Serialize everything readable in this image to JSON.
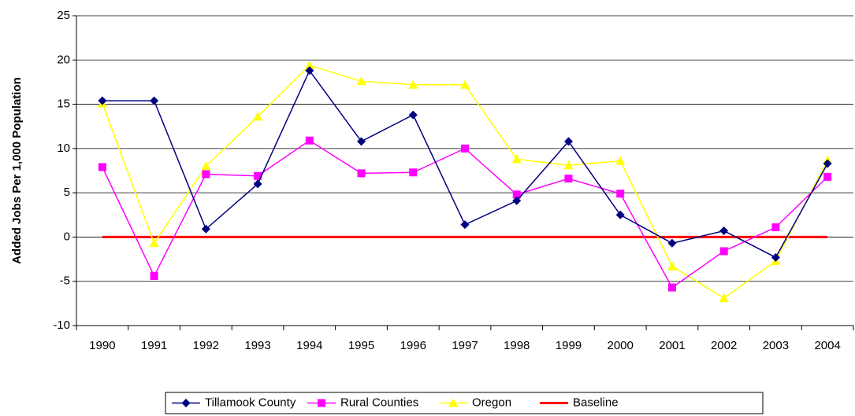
{
  "chart_data": {
    "type": "line",
    "y_label": "Added Jobs Per 1,000 Population",
    "categories": [
      "1990",
      "1991",
      "1992",
      "1993",
      "1994",
      "1995",
      "1996",
      "1997",
      "1998",
      "1999",
      "2000",
      "2001",
      "2002",
      "2003",
      "2004"
    ],
    "series": [
      {
        "name": "Tillamook County",
        "color": "#000080",
        "marker": "diamond",
        "values": [
          15.4,
          15.4,
          0.9,
          6.0,
          18.8,
          10.8,
          13.8,
          1.4,
          4.1,
          10.8,
          2.5,
          -0.7,
          0.7,
          -2.3,
          8.3
        ]
      },
      {
        "name": "Rural Counties",
        "color": "#ff00ff",
        "marker": "square",
        "values": [
          7.9,
          -4.4,
          7.1,
          6.9,
          10.9,
          7.2,
          7.3,
          10.0,
          4.8,
          6.6,
          4.9,
          -5.7,
          -1.6,
          1.1,
          6.8
        ]
      },
      {
        "name": "Oregon",
        "color": "#ffff00",
        "marker": "triangle",
        "values": [
          15.1,
          -0.7,
          8.0,
          13.6,
          19.4,
          17.6,
          17.2,
          17.2,
          8.8,
          8.1,
          8.6,
          -3.3,
          -6.9,
          -2.7,
          8.7
        ]
      },
      {
        "name": "Baseline",
        "color": "#ff0000",
        "values": [
          0,
          0,
          0,
          0,
          0,
          0,
          0,
          0,
          0,
          0,
          0,
          0,
          0,
          0,
          0
        ]
      }
    ],
    "ylim": [
      -10,
      25
    ],
    "yticks": [
      -10,
      -5,
      0,
      5,
      10,
      15,
      20,
      25
    ],
    "grid": true,
    "legend": "bottom"
  }
}
